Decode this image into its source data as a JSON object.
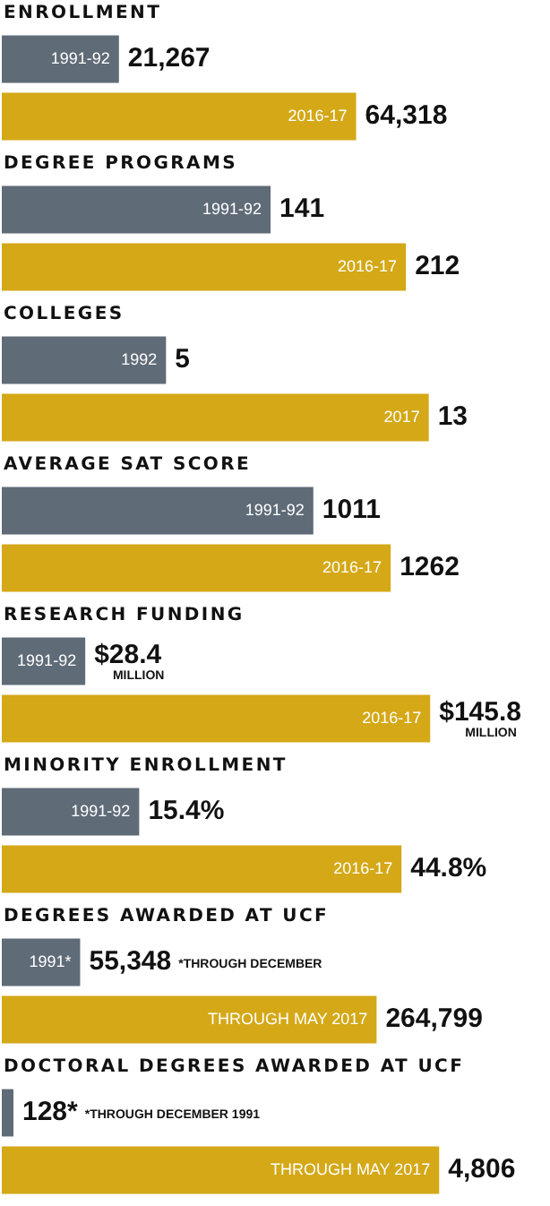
{
  "chart_data": [
    {
      "type": "bar",
      "orientation": "horizontal",
      "title": "ENROLLMENT",
      "categories": [
        "1991-92",
        "2016-17"
      ],
      "values": [
        21267,
        64318
      ],
      "colors": [
        "#5f6b77",
        "#d4a817"
      ],
      "value_labels": [
        "21,267",
        "64,318"
      ]
    },
    {
      "type": "bar",
      "orientation": "horizontal",
      "title": "DEGREE PROGRAMS",
      "categories": [
        "1991-92",
        "2016-17"
      ],
      "values": [
        141,
        212
      ],
      "colors": [
        "#5f6b77",
        "#d4a817"
      ],
      "value_labels": [
        "141",
        "212"
      ]
    },
    {
      "type": "bar",
      "orientation": "horizontal",
      "title": "COLLEGES",
      "categories": [
        "1992",
        "2017"
      ],
      "values": [
        5,
        13
      ],
      "colors": [
        "#5f6b77",
        "#d4a817"
      ],
      "value_labels": [
        "5",
        "13"
      ]
    },
    {
      "type": "bar",
      "orientation": "horizontal",
      "title": "AVERAGE SAT SCORE",
      "categories": [
        "1991-92",
        "2016-17"
      ],
      "values": [
        1011,
        1262
      ],
      "colors": [
        "#5f6b77",
        "#d4a817"
      ],
      "value_labels": [
        "1011",
        "1262"
      ]
    },
    {
      "type": "bar",
      "orientation": "horizontal",
      "title": "RESEARCH FUNDING",
      "categories": [
        "1991-92",
        "2016-17"
      ],
      "values": [
        28.4,
        145.8
      ],
      "colors": [
        "#5f6b77",
        "#d4a817"
      ],
      "value_labels": [
        "$28.4 MILLION",
        "$145.8 MILLION"
      ]
    },
    {
      "type": "bar",
      "orientation": "horizontal",
      "title": "MINORITY ENROLLMENT",
      "categories": [
        "1991-92",
        "2016-17"
      ],
      "values": [
        15.4,
        44.8
      ],
      "colors": [
        "#5f6b77",
        "#d4a817"
      ],
      "value_labels": [
        "15.4%",
        "44.8%"
      ]
    },
    {
      "type": "bar",
      "orientation": "horizontal",
      "title": "DEGREES AWARDED AT UCF",
      "categories": [
        "1991*",
        "THROUGH MAY 2017"
      ],
      "values": [
        55348,
        264799
      ],
      "colors": [
        "#5f6b77",
        "#d4a817"
      ],
      "value_labels": [
        "55,348",
        "264,799"
      ],
      "annotations": [
        "*THROUGH DECEMBER"
      ]
    },
    {
      "type": "bar",
      "orientation": "horizontal",
      "title": "DOCTORAL DEGREES AWARDED AT UCF",
      "categories": [
        null,
        "THROUGH MAY 2017"
      ],
      "values": [
        128,
        4806
      ],
      "colors": [
        "#5f6b77",
        "#d4a817"
      ],
      "value_labels": [
        "128*",
        "4,806"
      ],
      "annotations": [
        "*THROUGH DECEMBER 1991"
      ]
    }
  ]
}
